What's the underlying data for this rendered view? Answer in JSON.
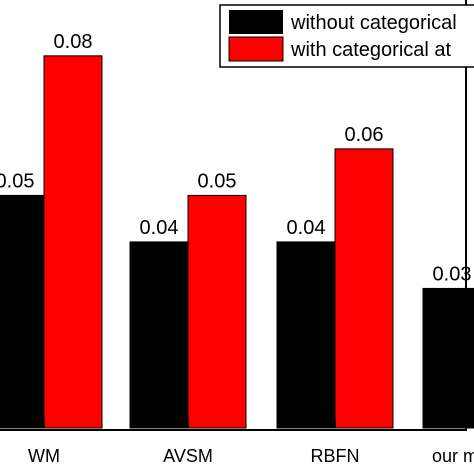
{
  "chart_data": {
    "type": "bar",
    "title": "",
    "xlabel": "",
    "ylabel": "",
    "categories": [
      "WM",
      "AVSM",
      "RBFN",
      "our m"
    ],
    "series": [
      {
        "name": "without categorical",
        "color": "#000000",
        "values": [
          0.05,
          0.04,
          0.04,
          0.03
        ],
        "labels": [
          "0.05",
          "0.04",
          "0.04",
          "0.03"
        ]
      },
      {
        "name": "with categorical at",
        "color": "#ff0000",
        "values": [
          0.08,
          0.05,
          0.06,
          null
        ],
        "labels": [
          "0.08",
          "0.05",
          "0.06",
          ""
        ]
      }
    ],
    "ylim": [
      0,
      0.092
    ],
    "grid": false,
    "legend": "top-right"
  }
}
